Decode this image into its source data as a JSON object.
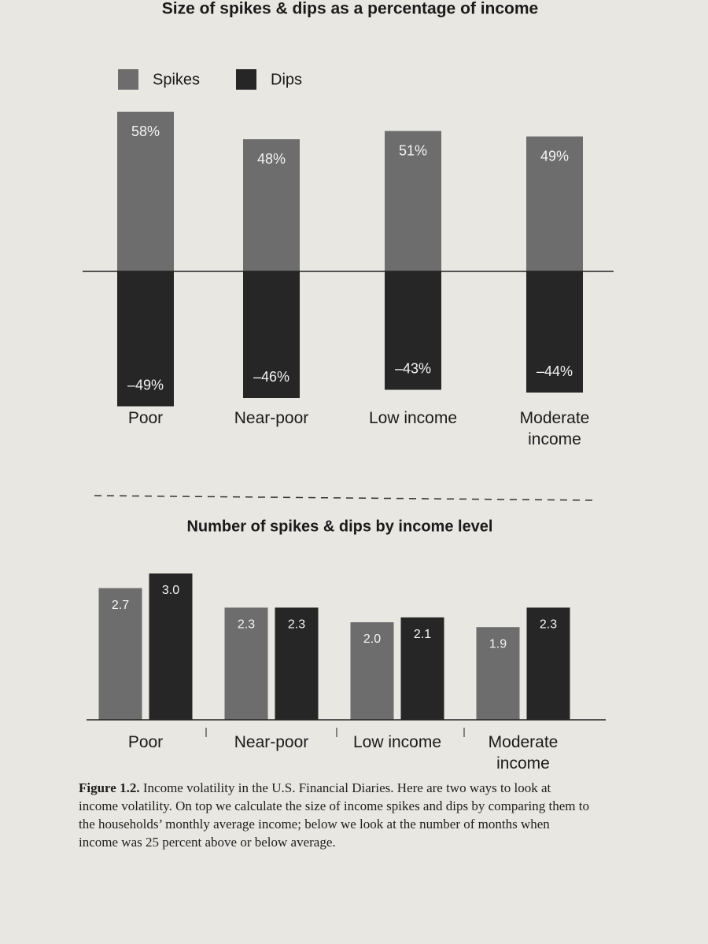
{
  "chart_data": [
    {
      "type": "diverging_bar",
      "title": "Size of spikes & dips as a percentage of income",
      "categories": [
        "Poor",
        "Near-poor",
        "Low income",
        "Moderate income"
      ],
      "series": [
        {
          "name": "Spikes",
          "color": "#6d6d6d",
          "values": [
            58,
            48,
            51,
            49
          ],
          "value_labels": [
            "58%",
            "48%",
            "51%",
            "49%"
          ]
        },
        {
          "name": "Dips",
          "color": "#262626",
          "values": [
            -49,
            -46,
            -43,
            -44
          ],
          "value_labels": [
            "–49%",
            "–46%",
            "–43%",
            "–44%"
          ]
        }
      ]
    },
    {
      "type": "bar",
      "title": "Number of spikes & dips by income level",
      "categories": [
        "Poor",
        "Near-poor",
        "Low income",
        "Moderate income"
      ],
      "series": [
        {
          "color": "#6d6d6d",
          "values": [
            2.7,
            2.3,
            2.0,
            1.9
          ],
          "value_labels": [
            "2.7",
            "2.3",
            "2.0",
            "1.9"
          ]
        },
        {
          "color": "#262626",
          "values": [
            3.0,
            2.3,
            2.1,
            2.3
          ],
          "value_labels": [
            "3.0",
            "2.3",
            "2.1",
            "2.3"
          ]
        }
      ]
    }
  ],
  "caption": {
    "label": "Figure 1.2.",
    "text": "Income volatility in the U.S. Financial Diaries. Here are two ways to look at income volatility. On top we calculate the size of income spikes and dips by comparing them to the households’ monthly average income; below we look at the number of months when income was 25 percent above or below average."
  }
}
